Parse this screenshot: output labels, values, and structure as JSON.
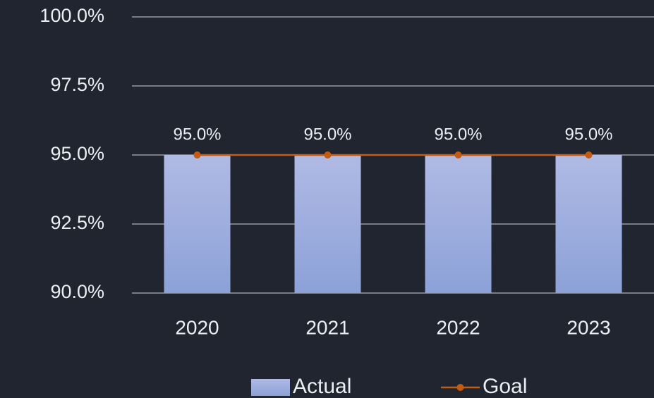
{
  "chart_data": {
    "type": "bar",
    "categories": [
      "2020",
      "2021",
      "2022",
      "2023"
    ],
    "series": [
      {
        "name": "Actual",
        "type": "bar",
        "color": "#a6b2e0",
        "values": [
          95,
          95,
          95,
          95
        ],
        "value_labels": [
          "95.0%",
          "95.0%",
          "95.0%",
          "95.0%"
        ]
      },
      {
        "name": "Goal",
        "type": "line",
        "color": "#c55a11",
        "values": [
          95,
          95,
          95,
          95
        ]
      }
    ],
    "ylim": [
      90,
      100
    ],
    "yticks": [
      {
        "value": 90,
        "label": "90.0%"
      },
      {
        "value": 92.5,
        "label": "92.5%"
      },
      {
        "value": 95,
        "label": "95.0%"
      },
      {
        "value": 97.5,
        "label": "97.5%"
      },
      {
        "value": 100,
        "label": "100.0%"
      }
    ],
    "grid": true,
    "legend": "bottom"
  }
}
